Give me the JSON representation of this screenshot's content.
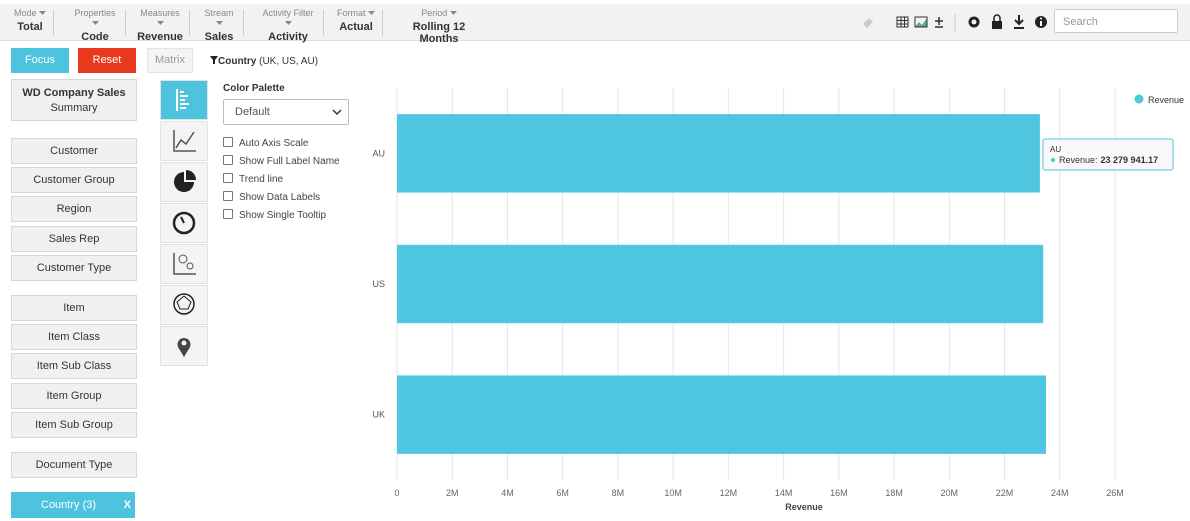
{
  "toolbar": {
    "items": [
      {
        "label": "Mode",
        "value": "Total"
      },
      {
        "label": "Properties",
        "value": "Code"
      },
      {
        "label": "Measures",
        "value": "Revenue"
      },
      {
        "label": "Stream",
        "value": "Sales"
      },
      {
        "label": "Activity Filter",
        "value": "Activity"
      },
      {
        "label": "Format",
        "value": "Actual"
      },
      {
        "label": "Period",
        "value": "Rolling 12 Months"
      }
    ],
    "search_placeholder": "Search"
  },
  "actions": {
    "focus": "Focus",
    "reset": "Reset",
    "matrix": "Matrix",
    "filter": "Country",
    "filter_values": "(UK, US, AU)"
  },
  "sidebar": {
    "header_title": "WD Company Sales",
    "header_subtitle": "Summary",
    "groups": [
      [
        "Customer",
        "Customer Group",
        "Region",
        "Sales Rep",
        "Customer Type"
      ],
      [
        "Item",
        "Item Class",
        "Item Sub Class",
        "Item Group",
        "Item Sub Group"
      ],
      [
        "Document Type"
      ]
    ],
    "selected": "Country (3)",
    "selected_close": "X"
  },
  "options": {
    "palette_label": "Color Palette",
    "palette": "Default",
    "checkboxes": [
      "Auto Axis Scale",
      "Show Full Label Name",
      "Trend line",
      "Show Data Labels",
      "Show Single Tooltip"
    ]
  },
  "chart_data": {
    "type": "hbar",
    "categories": [
      "AU",
      "US",
      "UK"
    ],
    "series": [
      {
        "name": "Revenue",
        "color": "#4ec6df",
        "values": [
          23279941.17,
          23400000,
          23500000
        ]
      }
    ],
    "x_label": "Revenue",
    "xlim": [
      0,
      26000000
    ],
    "xticks": [
      0,
      {
        "value": 2000000,
        "label": "2M"
      },
      {
        "value": 4000000,
        "label": "4M"
      },
      {
        "value": 6000000,
        "label": "6M"
      },
      {
        "value": 8000000,
        "label": "8M"
      },
      {
        "value": 10000000,
        "label": "10M"
      },
      {
        "value": 12000000,
        "label": "12M"
      },
      {
        "value": 14000000,
        "label": "14M"
      },
      {
        "value": 16000000,
        "label": "16M"
      },
      {
        "value": 18000000,
        "label": "18M"
      },
      {
        "value": 20000000,
        "label": "20M"
      },
      {
        "value": 22000000,
        "label": "22M"
      },
      {
        "value": 24000000,
        "label": "24M"
      },
      {
        "value": 26000000,
        "label": "26M"
      }
    ],
    "grid": true,
    "legend": "top-right",
    "tooltip": {
      "title": "AU",
      "series": "Revenue:",
      "value": "23 279 941.17"
    }
  }
}
